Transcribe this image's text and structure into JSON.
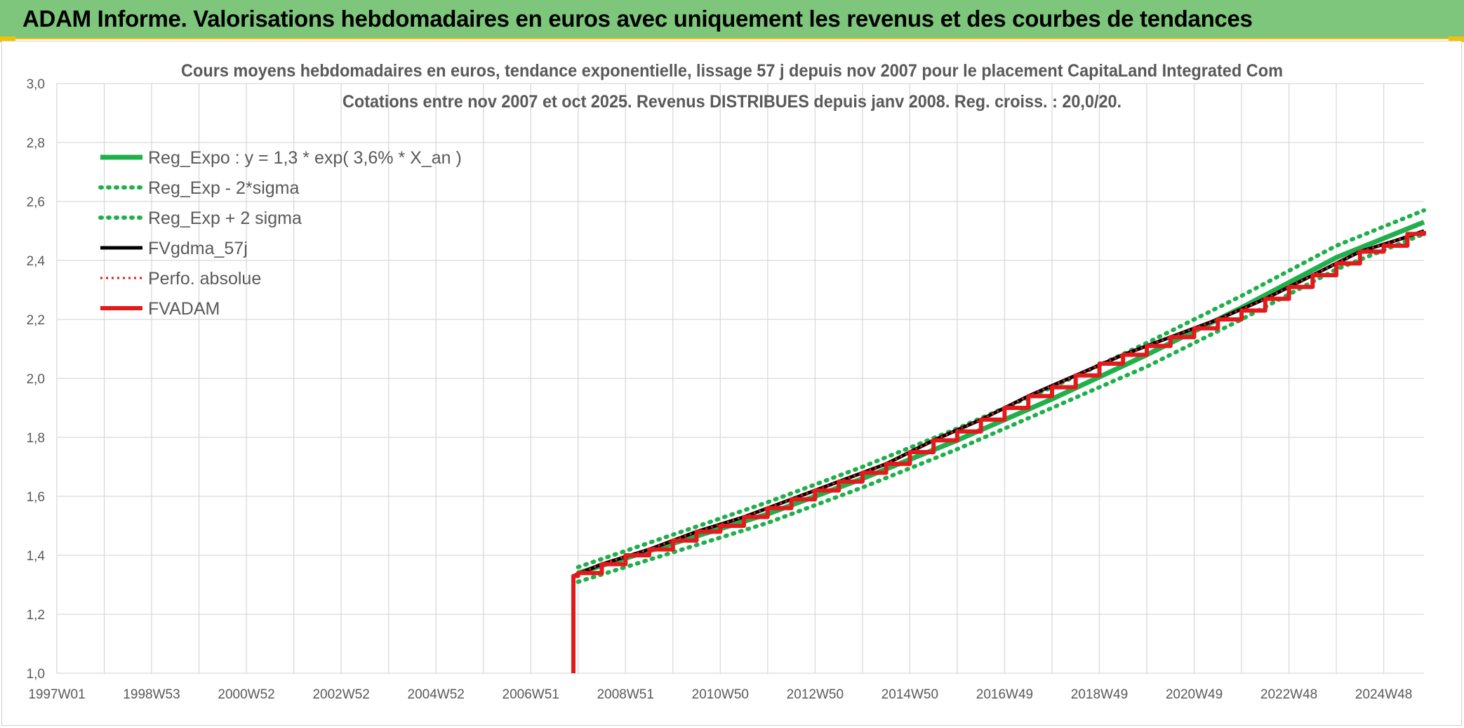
{
  "banner": {
    "title": "ADAM Informe. Valorisations hebdomadaires en euros avec uniquement les revenus et des courbes de tendances",
    "bg_color": "#7dc67b",
    "accent_color": "#f2c200"
  },
  "chart_data": {
    "type": "line",
    "title": "Cours moyens hebdomadaires en euros, tendance exponentielle, lissage 57 j depuis nov 2007 pour le placement CapitaLand Integrated Com",
    "subtitle": "Cotations entre nov 2007 et oct 2025. Revenus DISTRIBUES depuis janv 2008. Reg. croiss. : 20,0/20.",
    "xlabel": "",
    "ylabel": "",
    "x_tick_labels": [
      "1997W01",
      "1998W53",
      "2000W52",
      "2002W52",
      "2004W52",
      "2006W51",
      "2008W51",
      "2010W50",
      "2012W50",
      "2014W50",
      "2016W49",
      "2018W49",
      "2020W49",
      "2022W48",
      "2024W48"
    ],
    "x_tick_years": [
      1997.0,
      1999.0,
      2001.0,
      2003.0,
      2005.0,
      2007.0,
      2009.0,
      2011.0,
      2013.0,
      2015.0,
      2017.0,
      2019.0,
      2021.0,
      2023.0,
      2025.0
    ],
    "xlim": [
      1997.0,
      2025.85
    ],
    "ylim": [
      1.0,
      3.0
    ],
    "y_ticks": [
      "1,0",
      "1,2",
      "1,4",
      "1,6",
      "1,8",
      "2,0",
      "2,2",
      "2,4",
      "2,6",
      "2,8",
      "3,0"
    ],
    "y_tick_values": [
      1.0,
      1.2,
      1.4,
      1.6,
      1.8,
      2.0,
      2.2,
      2.4,
      2.6,
      2.8,
      3.0
    ],
    "grid": true,
    "legend_position": "top-left",
    "series": [
      {
        "name": "Reg_Expo : y = 1,3 * exp( 3,6% *  X_an )",
        "color": "#1fb04c",
        "style": "solid",
        "x": [
          2008.0,
          2010.0,
          2012.0,
          2014.0,
          2016.0,
          2018.0,
          2020.0,
          2022.0,
          2024.0,
          2025.85
        ],
        "y": [
          1.34,
          1.44,
          1.54,
          1.66,
          1.79,
          1.93,
          2.08,
          2.24,
          2.41,
          2.53
        ]
      },
      {
        "name": "Reg_Exp - 2*sigma",
        "color": "#1fb04c",
        "style": "dotted",
        "x": [
          2008.0,
          2010.0,
          2012.0,
          2014.0,
          2016.0,
          2018.0,
          2020.0,
          2022.0,
          2024.0,
          2025.85
        ],
        "y": [
          1.31,
          1.41,
          1.51,
          1.63,
          1.76,
          1.9,
          2.04,
          2.2,
          2.37,
          2.49
        ]
      },
      {
        "name": "Reg_Exp + 2 sigma",
        "color": "#1fb04c",
        "style": "dotted",
        "x": [
          2008.0,
          2010.0,
          2012.0,
          2014.0,
          2016.0,
          2018.0,
          2020.0,
          2022.0,
          2024.0,
          2025.85
        ],
        "y": [
          1.36,
          1.47,
          1.58,
          1.7,
          1.83,
          1.97,
          2.12,
          2.28,
          2.45,
          2.57
        ]
      },
      {
        "name": "FVgdma_57j",
        "color": "#000000",
        "style": "solid",
        "x": [
          2007.9,
          2008.5,
          2009.5,
          2010.5,
          2011.5,
          2012.5,
          2013.5,
          2014.5,
          2015.5,
          2016.5,
          2017.5,
          2018.5,
          2019.5,
          2020.5,
          2021.5,
          2022.5,
          2023.5,
          2024.5,
          2025.3,
          2025.85
        ],
        "y": [
          1.33,
          1.37,
          1.42,
          1.48,
          1.53,
          1.59,
          1.65,
          1.71,
          1.79,
          1.86,
          1.94,
          2.01,
          2.08,
          2.14,
          2.2,
          2.27,
          2.35,
          2.43,
          2.47,
          2.5
        ]
      },
      {
        "name": "Perfo. absolue",
        "color": "#e31a1c",
        "style": "dotted",
        "x": [
          2007.9,
          2008.5,
          2009.5,
          2010.5,
          2011.5,
          2012.5,
          2013.5,
          2014.5,
          2015.5,
          2016.5,
          2017.5,
          2018.5,
          2019.5,
          2020.5,
          2021.5,
          2022.5,
          2023.5,
          2024.5,
          2025.3,
          2025.85
        ],
        "y": [
          1.33,
          1.37,
          1.42,
          1.48,
          1.53,
          1.59,
          1.65,
          1.71,
          1.79,
          1.86,
          1.94,
          2.01,
          2.08,
          2.14,
          2.2,
          2.27,
          2.35,
          2.43,
          2.47,
          2.5
        ]
      },
      {
        "name": "FVADAM",
        "color": "#e31a1c",
        "style": "solid",
        "x": [
          2007.9,
          2007.9,
          2008.0,
          2008.5,
          2009.0,
          2009.5,
          2010.0,
          2010.5,
          2011.0,
          2011.5,
          2012.0,
          2012.5,
          2013.0,
          2013.5,
          2014.0,
          2014.5,
          2015.0,
          2015.5,
          2016.0,
          2016.5,
          2017.0,
          2017.5,
          2018.0,
          2018.5,
          2019.0,
          2019.5,
          2020.0,
          2020.5,
          2021.0,
          2021.5,
          2022.0,
          2022.5,
          2023.0,
          2023.5,
          2024.0,
          2024.5,
          2025.0,
          2025.5,
          2025.85
        ],
        "y": [
          1.0,
          1.33,
          1.34,
          1.37,
          1.4,
          1.42,
          1.45,
          1.48,
          1.5,
          1.53,
          1.56,
          1.59,
          1.62,
          1.65,
          1.68,
          1.71,
          1.75,
          1.79,
          1.82,
          1.86,
          1.9,
          1.94,
          1.97,
          2.01,
          2.05,
          2.08,
          2.11,
          2.14,
          2.17,
          2.2,
          2.23,
          2.27,
          2.31,
          2.35,
          2.39,
          2.43,
          2.45,
          2.49,
          2.5
        ]
      }
    ]
  }
}
